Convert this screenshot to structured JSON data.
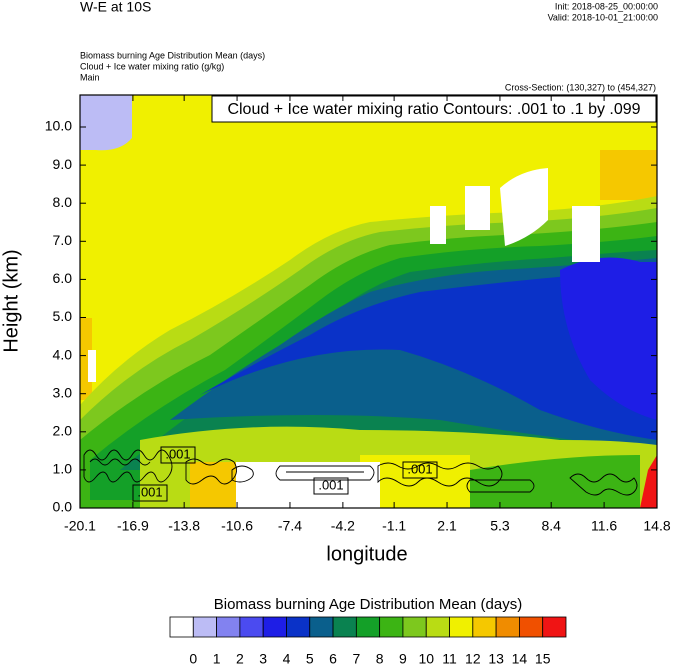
{
  "chart_data": {
    "type": "contour",
    "title": "W-E at 10S",
    "init": "Init: 2018-08-25_00:00:00",
    "valid": "Valid: 2018-10-01_21:00:00",
    "field_title": "Biomass burning Age Distribution Mean   (days)",
    "contour_field_title": "Cloud + Ice water mixing ratio   (g/kg)",
    "subtitle": "Main",
    "cross_section": "Cross-Section: (130,327) to (454,327)",
    "contour_info": "Cloud + Ice water mixing ratio Contours: .001 to .1 by .099",
    "xlabel": "longitude",
    "ylabel": "Height (km)",
    "xlim": [
      -20.1,
      14.8
    ],
    "xticks": [
      -20.1,
      -16.9,
      -13.8,
      -10.6,
      -7.4,
      -4.2,
      -1.1,
      2.1,
      5.3,
      8.4,
      11.6,
      14.8
    ],
    "ylim": [
      0,
      10.84
    ],
    "yticks": [
      {
        "value": 0,
        "label": "0.0"
      },
      {
        "value": 1,
        "label": "1.0"
      },
      {
        "value": 2,
        "label": "2.0"
      },
      {
        "value": 3,
        "label": "3.0"
      },
      {
        "value": 4,
        "label": "4.0"
      },
      {
        "value": 5,
        "label": "5.0"
      },
      {
        "value": 6,
        "label": "6.0"
      },
      {
        "value": 7,
        "label": "7.0"
      },
      {
        "value": 8,
        "label": "8.0"
      },
      {
        "value": 9,
        "label": "9.0"
      },
      {
        "value": 10,
        "label": "10.0"
      }
    ],
    "contour_labels": [
      ".001",
      ".001",
      ".001",
      ".001"
    ],
    "colorbar": {
      "title": "Biomass burning Age Distribution Mean  (days)",
      "levels": [
        0,
        1,
        2,
        3,
        4,
        5,
        6,
        7,
        8,
        9,
        10,
        11,
        12,
        13,
        14,
        15
      ],
      "colors": [
        "#ffffff",
        "#bcbcf5",
        "#8282f0",
        "#4b4bf0",
        "#1e1ee6",
        "#0a32c8",
        "#0a5f8c",
        "#0a8250",
        "#14a028",
        "#3cb414",
        "#7dc81e",
        "#b9dc14",
        "#f0f000",
        "#f5c800",
        "#f08c00",
        "#f05000",
        "#f01414"
      ]
    }
  }
}
